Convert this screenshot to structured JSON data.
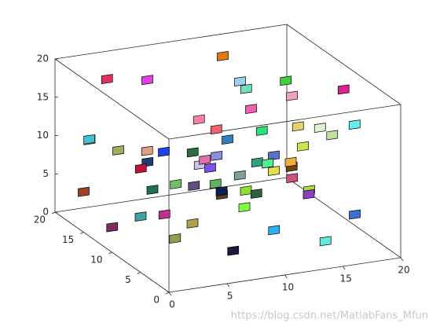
{
  "chart_data": {
    "type": "scatter3d",
    "x": [
      3,
      18,
      12,
      7,
      15,
      9,
      1,
      19,
      5,
      11,
      14,
      2,
      17,
      8,
      13,
      6,
      10,
      16,
      4,
      12,
      18,
      0.5,
      9,
      15,
      7,
      3,
      11,
      19,
      14,
      6,
      2,
      16,
      10,
      8,
      13,
      5,
      17,
      1,
      12,
      9,
      15,
      4,
      7,
      18,
      11,
      3,
      14,
      6,
      10,
      16,
      2,
      8,
      13,
      19,
      5,
      12,
      7,
      15,
      9,
      1
    ],
    "y": [
      15,
      4,
      10,
      18,
      7,
      2,
      12,
      16,
      6,
      14,
      1,
      9,
      13,
      5,
      17,
      11,
      3,
      8,
      19,
      6,
      12,
      15,
      9,
      4,
      1,
      7,
      18,
      10,
      13,
      16,
      3,
      19,
      5,
      11,
      8,
      14,
      2,
      17,
      6,
      12,
      10,
      4,
      7,
      15,
      1,
      9,
      16,
      13,
      3,
      11,
      18,
      6,
      14,
      8,
      2,
      19,
      5,
      17,
      10,
      7
    ],
    "z": [
      10,
      4,
      16,
      6,
      12,
      18,
      2,
      9,
      14,
      8,
      3,
      11,
      15,
      1,
      19,
      7,
      13,
      5,
      17,
      10,
      3,
      12,
      6,
      16,
      9,
      14,
      2,
      11,
      7,
      18,
      5,
      13,
      8,
      15,
      1,
      10,
      17,
      4,
      12,
      9,
      19,
      6,
      11,
      3,
      14,
      8,
      16,
      2,
      13,
      7,
      10,
      15,
      5,
      18,
      12,
      4,
      9,
      1,
      14,
      6
    ],
    "colors": [
      "#9db05a",
      "#3b6fd4",
      "#f25fb0",
      "#1c3f7a",
      "#c6e84a",
      "#2fe07a",
      "#7a2c5c",
      "#e8d36a",
      "#2a6e3f",
      "#8a8fe0",
      "#5fe8e0",
      "#c2103c",
      "#f0a0c0",
      "#1a1a40",
      "#e07a10",
      "#70c070",
      "#3fe0a0",
      "#9040c0",
      "#e03060",
      "#dfe04a",
      "#a0e040",
      "#40c0d0",
      "#5c4020",
      "#e0f0d0",
      "#80ff40",
      "#2040f0",
      "#605080",
      "#c0e0a0",
      "#30a080",
      "#e040e0",
      "#9a9a50",
      "#70e0c0",
      "#306040",
      "#ff80a0",
      "#2ab0f0",
      "#e0a080",
      "#60f0f0",
      "#a04020",
      "#5c70d0",
      "#e070b0",
      "#40d040",
      "#b0a050",
      "#8050f0",
      "#d05080",
      "#f0b040",
      "#207050",
      "#a0d0f0",
      "#c03090",
      "#50f090",
      "#704010",
      "#f0f070",
      "#3080c0",
      "#80a0a0",
      "#e02090",
      "#60b060",
      "#d0c0f0",
      "#102050",
      "#90e030",
      "#f06070",
      "#40a0a0"
    ],
    "xlim": [
      0,
      20
    ],
    "ylim": [
      0,
      20
    ],
    "zlim": [
      0,
      20
    ],
    "xticks": [
      0,
      5,
      10,
      15,
      20
    ],
    "yticks": [
      0,
      5,
      10,
      15,
      20
    ],
    "zticks": [
      0,
      5,
      10,
      15,
      20
    ],
    "box": true,
    "watermark": "https://blog.csdn.net/MatlabFans_Mfun"
  }
}
